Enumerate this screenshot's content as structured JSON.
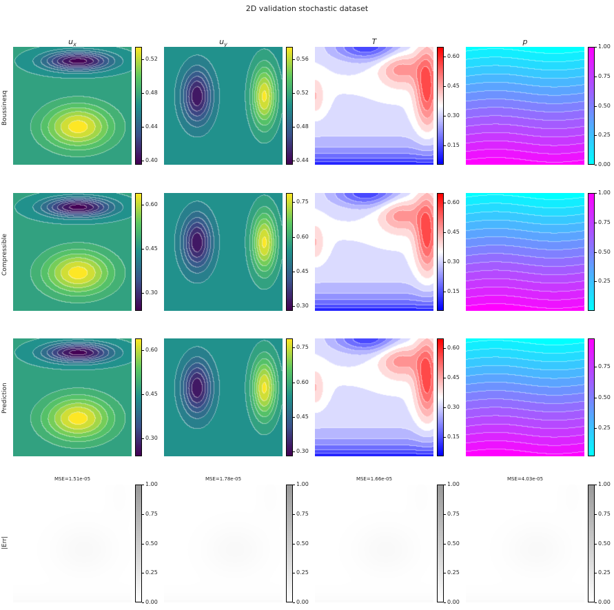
{
  "title": "2D validation stochastic dataset",
  "columns": [
    "u_x",
    "u_y",
    "T",
    "p"
  ],
  "rows": [
    "Boussinesq",
    "Compressible",
    "Prediction",
    "|Err|"
  ],
  "colors": {
    "viridis": [
      "#440154",
      "#3b528b",
      "#21918c",
      "#5ec962",
      "#fde725"
    ],
    "bwr": [
      "#0000ff",
      "#ffffff",
      "#ff0000"
    ],
    "cool": [
      "#00ffff",
      "#ff00ff"
    ],
    "greys": [
      "#ffffff",
      "#9a9a9a"
    ]
  },
  "chart_data": [
    {
      "type": "heatmap",
      "row": "Boussinesq",
      "column": "u_x",
      "colormap": "viridis",
      "colorbar_ticks": [
        "0.40",
        "0.44",
        "0.48",
        "0.52"
      ],
      "colorbar_range": [
        0.395,
        0.535
      ],
      "pattern": "velocity_x"
    },
    {
      "type": "heatmap",
      "row": "Boussinesq",
      "column": "u_y",
      "colormap": "viridis",
      "colorbar_ticks": [
        "0.44",
        "0.48",
        "0.52",
        "0.56"
      ],
      "colorbar_range": [
        0.435,
        0.575
      ],
      "pattern": "velocity_y"
    },
    {
      "type": "heatmap",
      "row": "Boussinesq",
      "column": "T",
      "colormap": "bwr",
      "colorbar_ticks": [
        "0.15",
        "0.30",
        "0.45",
        "0.60"
      ],
      "colorbar_range": [
        0.05,
        0.65
      ],
      "pattern": "temperature"
    },
    {
      "type": "heatmap",
      "row": "Boussinesq",
      "column": "p",
      "colormap": "cool",
      "colorbar_ticks": [
        "0.00",
        "0.25",
        "0.50",
        "0.75",
        "1.00"
      ],
      "colorbar_range": [
        0.0,
        1.0
      ],
      "pattern": "pressure"
    },
    {
      "type": "heatmap",
      "row": "Compressible",
      "column": "u_x",
      "colormap": "viridis",
      "colorbar_ticks": [
        "0.30",
        "0.45",
        "0.60"
      ],
      "colorbar_range": [
        0.24,
        0.64
      ],
      "pattern": "velocity_x"
    },
    {
      "type": "heatmap",
      "row": "Compressible",
      "column": "u_y",
      "colormap": "viridis",
      "colorbar_ticks": [
        "0.30",
        "0.45",
        "0.60",
        "0.75"
      ],
      "colorbar_range": [
        0.28,
        0.79
      ],
      "pattern": "velocity_y"
    },
    {
      "type": "heatmap",
      "row": "Compressible",
      "column": "T",
      "colormap": "bwr",
      "colorbar_ticks": [
        "0.15",
        "0.30",
        "0.45",
        "0.60"
      ],
      "colorbar_range": [
        0.05,
        0.65
      ],
      "pattern": "temperature"
    },
    {
      "type": "heatmap",
      "row": "Compressible",
      "column": "p",
      "colormap": "cool",
      "colorbar_ticks": [
        "0.25",
        "0.50",
        "0.75",
        "1.00"
      ],
      "colorbar_range": [
        0.0,
        1.0
      ],
      "pattern": "pressure"
    },
    {
      "type": "heatmap",
      "row": "Prediction",
      "column": "u_x",
      "colormap": "viridis",
      "colorbar_ticks": [
        "0.30",
        "0.45",
        "0.60"
      ],
      "colorbar_range": [
        0.24,
        0.64
      ],
      "pattern": "velocity_x"
    },
    {
      "type": "heatmap",
      "row": "Prediction",
      "column": "u_y",
      "colormap": "viridis",
      "colorbar_ticks": [
        "0.30",
        "0.45",
        "0.60",
        "0.75"
      ],
      "colorbar_range": [
        0.28,
        0.79
      ],
      "pattern": "velocity_y"
    },
    {
      "type": "heatmap",
      "row": "Prediction",
      "column": "T",
      "colormap": "bwr",
      "colorbar_ticks": [
        "0.15",
        "0.30",
        "0.45",
        "0.60"
      ],
      "colorbar_range": [
        0.05,
        0.65
      ],
      "pattern": "temperature"
    },
    {
      "type": "heatmap",
      "row": "Prediction",
      "column": "p",
      "colormap": "cool",
      "colorbar_ticks": [
        "0.25",
        "0.50",
        "0.75"
      ],
      "colorbar_range": [
        0.02,
        0.98
      ],
      "pattern": "pressure"
    },
    {
      "type": "heatmap",
      "row": "|Err|",
      "column": "u_x",
      "colormap": "greys",
      "mse": "MSE=1.51e-05",
      "colorbar_ticks": [
        "0.00",
        "0.25",
        "0.50",
        "0.75",
        "1.00"
      ],
      "colorbar_range": [
        0.0,
        1.0
      ],
      "pattern": "error"
    },
    {
      "type": "heatmap",
      "row": "|Err|",
      "column": "u_y",
      "colormap": "greys",
      "mse": "MSE=1.78e-05",
      "colorbar_ticks": [
        "0.00",
        "0.25",
        "0.50",
        "0.75",
        "1.00"
      ],
      "colorbar_range": [
        0.0,
        1.0
      ],
      "pattern": "error"
    },
    {
      "type": "heatmap",
      "row": "|Err|",
      "column": "T",
      "colormap": "greys",
      "mse": "MSE=1.66e-05",
      "colorbar_ticks": [
        "0.00",
        "0.25",
        "0.50",
        "0.75",
        "1.00"
      ],
      "colorbar_range": [
        0.0,
        1.0
      ],
      "pattern": "error"
    },
    {
      "type": "heatmap",
      "row": "|Err|",
      "column": "p",
      "colormap": "greys",
      "mse": "MSE=4.03e-05",
      "colorbar_ticks": [
        "0.00",
        "0.25",
        "0.50",
        "0.75",
        "1.00"
      ],
      "colorbar_range": [
        0.0,
        1.0
      ],
      "pattern": "error"
    }
  ]
}
